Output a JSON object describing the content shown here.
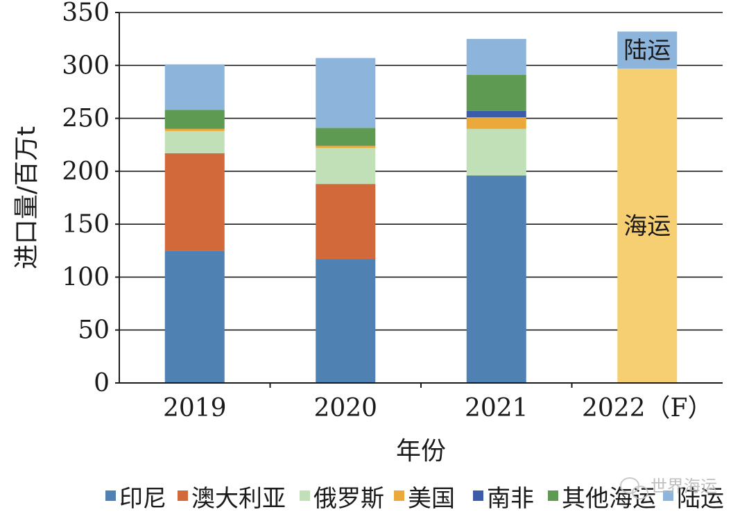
{
  "chart_data": {
    "type": "stacked-bar",
    "title": "",
    "xlabel": "年份",
    "ylabel": "进口量/百万t",
    "ylim": [
      0,
      350
    ],
    "yticks": [
      0,
      50,
      100,
      150,
      200,
      250,
      300,
      350
    ],
    "categories": [
      "2019",
      "2020",
      "2021",
      "2022（F）"
    ],
    "series": [
      {
        "name": "印尼",
        "color": "#4f81b3",
        "values": [
          125,
          117,
          196,
          0
        ]
      },
      {
        "name": "澳大利亚",
        "color": "#d2693a",
        "values": [
          92,
          71,
          0,
          0
        ]
      },
      {
        "name": "俄罗斯",
        "color": "#c2e0b8",
        "values": [
          21,
          34,
          44,
          0
        ]
      },
      {
        "name": "美国",
        "color": "#eba83b",
        "values": [
          2,
          2,
          11,
          0
        ]
      },
      {
        "name": "南非",
        "color": "#3b5ca8",
        "values": [
          0,
          0,
          6,
          0
        ]
      },
      {
        "name": "其他海运",
        "color": "#5f9a52",
        "values": [
          18,
          17,
          34,
          0
        ]
      },
      {
        "name": "陆运",
        "color": "#8db4da",
        "values": [
          43,
          66,
          34,
          0
        ]
      }
    ],
    "forecast": {
      "category": "2022（F）",
      "segments": [
        {
          "name": "海运",
          "color": "#f6cf72",
          "value": 297,
          "label": "海运"
        },
        {
          "name": "陆运",
          "color": "#8db4da",
          "value": 35,
          "label": "陆运"
        }
      ]
    },
    "legend_position": "bottom",
    "grid": true
  },
  "watermark": "世界海运",
  "watermark_icon": "wechat-icon"
}
